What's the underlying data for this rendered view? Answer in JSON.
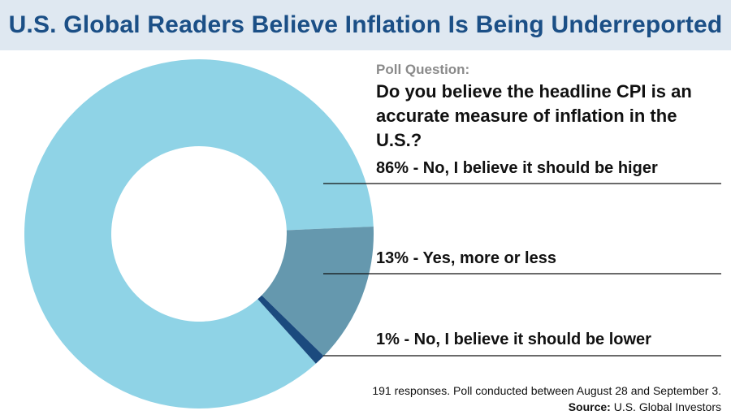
{
  "header": {
    "title": "U.S. Global Readers Believe Inflation Is Being Underreported"
  },
  "poll": {
    "label": "Poll Question:",
    "question": "Do you believe the headline CPI is an accurate measure of inflation in the U.S.?"
  },
  "chart_data": {
    "type": "pie",
    "title": "U.S. Global Readers Believe Inflation Is Being Underreported",
    "categories": [
      "86% - No, I believe it should be higer",
      "13% - Yes, more or less",
      "1% - No, I believe it should be lower"
    ],
    "values": [
      86,
      13,
      1
    ],
    "colors": [
      "#8fd3e6",
      "#6598ae",
      "#1b4a7e"
    ],
    "legend_position": "right",
    "donut": true
  },
  "footnote": {
    "responses": "191 responses. Poll conducted between August 28 and September 3.",
    "source_label": "Source:",
    "source_value": "U.S. Global Investors"
  }
}
